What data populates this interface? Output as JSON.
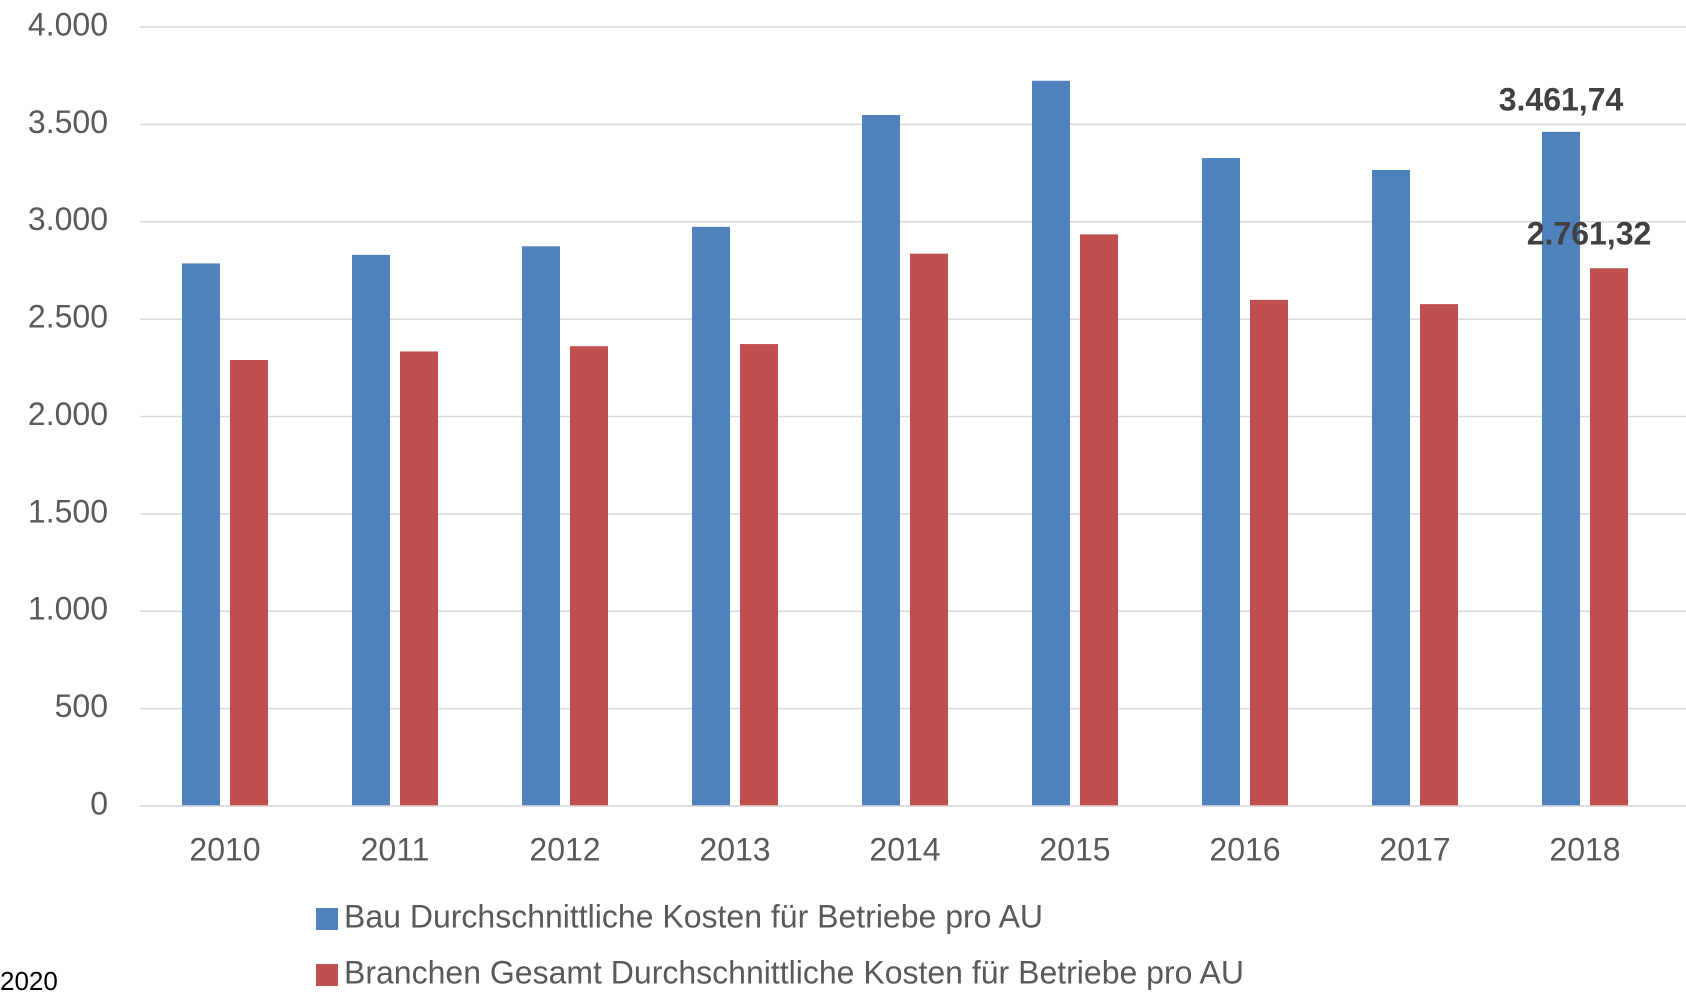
{
  "chart_data": {
    "type": "bar",
    "categories": [
      "2010",
      "2011",
      "2012",
      "2013",
      "2014",
      "2015",
      "2016",
      "2017",
      "2018"
    ],
    "series": [
      {
        "name": "Bau Durchschnittliche Kosten für Betriebe pro AU",
        "color": "#4f81bd",
        "values": [
          2786,
          2830,
          2874,
          2974,
          3548,
          3724,
          3327,
          3266,
          3461.74
        ],
        "value_labels": [
          null,
          null,
          null,
          null,
          null,
          null,
          null,
          null,
          "3.461,74"
        ]
      },
      {
        "name": "Branchen Gesamt Durchschnittliche Kosten für Betriebe pro AU",
        "color": "#c0504d",
        "values": [
          2290,
          2334,
          2361,
          2372,
          2836,
          2935,
          2599,
          2577,
          2761.32
        ],
        "value_labels": [
          null,
          null,
          null,
          null,
          null,
          null,
          null,
          null,
          "2.761,32"
        ]
      }
    ],
    "ylim": [
      0,
      4000
    ],
    "yticks": [
      0,
      {
        "value": 500,
        "label": "500"
      },
      {
        "value": 1000,
        "label": "1.000"
      },
      {
        "value": 1500,
        "label": "1.500"
      },
      {
        "value": 2000,
        "label": "2.000"
      },
      {
        "value": 2500,
        "label": "2.500"
      },
      {
        "value": 3000,
        "label": "3.000"
      },
      {
        "value": 3500,
        "label": "3.500"
      },
      {
        "value": 4000,
        "label": "4.000"
      }
    ],
    "grid": true,
    "footnote": "2020"
  }
}
